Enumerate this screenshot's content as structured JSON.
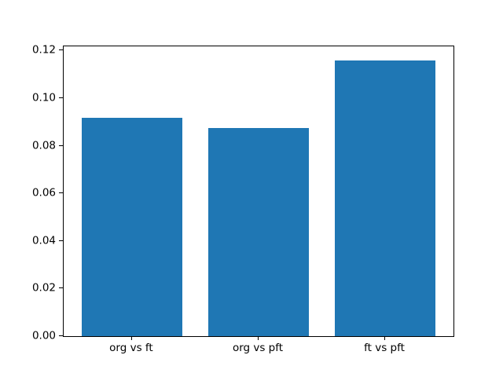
{
  "figure": {
    "background": "#ffffff",
    "title": ""
  },
  "chart_data": {
    "type": "bar",
    "categories": [
      "org vs ft",
      "org vs pft",
      "ft vs pft"
    ],
    "values": [
      0.0917,
      0.0876,
      0.116
    ],
    "title": "",
    "xlabel": "",
    "ylabel": "",
    "ylim": [
      0,
      0.1218
    ],
    "yticks": [
      0,
      0.02,
      0.04,
      0.06,
      0.08,
      0.1,
      0.12
    ],
    "ytick_labels": [
      "0.00",
      "0.02",
      "0.04",
      "0.06",
      "0.08",
      "0.10",
      "0.12"
    ],
    "bar_color": "#1f77b4",
    "bar_width_fraction": 0.8,
    "grid": false,
    "legend": null,
    "axis_color": "#000000",
    "text_color": "#000000"
  }
}
